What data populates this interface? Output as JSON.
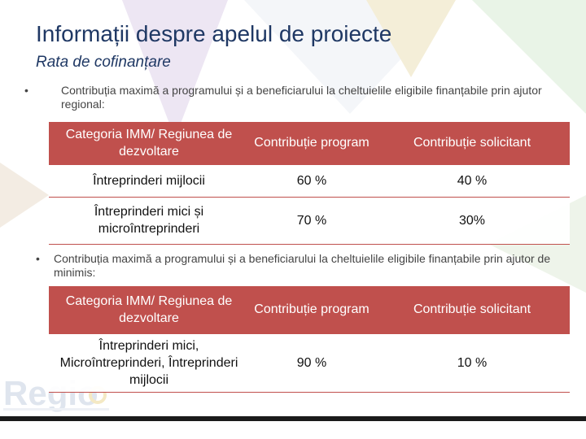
{
  "slide": {
    "title": "Informații despre apelul de proiecte",
    "subtitle": "Rata de cofinanțare"
  },
  "section1": {
    "bullet": "•",
    "text": "Contribuția maximă a programului și a beneficiarului la cheltuielile eligibile finanțabile prin ajutor regional:",
    "table": {
      "headers": [
        "Categoria IMM/ Regiunea de dezvoltare",
        "Contribuție program",
        "Contribuție solicitant"
      ],
      "rows": [
        [
          "Întreprinderi mijlocii",
          "60 %",
          "40 %"
        ],
        [
          "Întreprinderi mici și microîntreprinderi",
          "70 %",
          "30%"
        ]
      ]
    }
  },
  "section2": {
    "bullet": "•",
    "text": "Contribuția maximă a programului și a beneficiarului la cheltuielile eligibile finanțabile prin ajutor de minimis:",
    "table": {
      "headers": [
        "Categoria IMM/ Regiunea de dezvoltare",
        "Contribuție program",
        "Contribuție solicitant"
      ],
      "rows": [
        [
          "Întreprinderi mici, Microîntreprinderi, Întreprinderi mijlocii",
          "90 %",
          "10 %"
        ]
      ]
    }
  },
  "logo": {
    "text": "Regio"
  },
  "colors": {
    "accent": "#c0504d",
    "title": "#1f3864"
  }
}
